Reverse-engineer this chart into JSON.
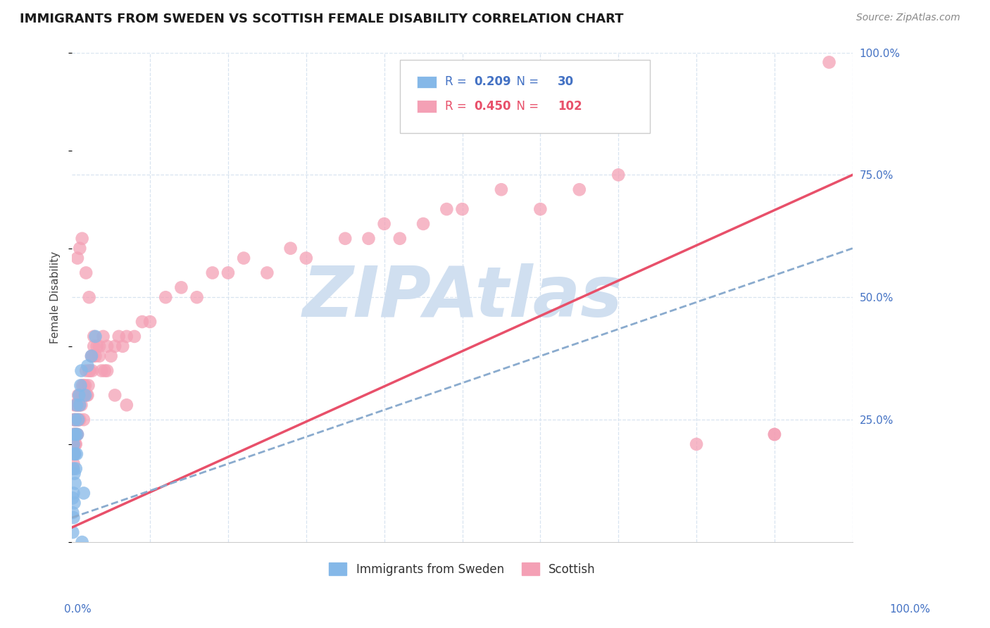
{
  "title": "IMMIGRANTS FROM SWEDEN VS SCOTTISH FEMALE DISABILITY CORRELATION CHART",
  "source": "Source: ZipAtlas.com",
  "ylabel": "Female Disability",
  "legend_blue_r": "0.209",
  "legend_blue_n": "30",
  "legend_pink_r": "0.450",
  "legend_pink_n": "102",
  "blue_color": "#85B8E8",
  "pink_color": "#F4A0B5",
  "blue_line_color": "#8AABCE",
  "pink_line_color": "#E8506A",
  "watermark_text": "ZIPAtlas",
  "watermark_color": "#D0DFF0",
  "background_color": "#FFFFFF",
  "grid_color": "#D8E4F0",
  "title_color": "#1A1A1A",
  "axis_label_color": "#4472C4",
  "pink_line_slope": 0.72,
  "pink_line_intercept": 0.03,
  "blue_line_slope": 0.55,
  "blue_line_intercept": 0.05,
  "blue_x": [
    0.001,
    0.001,
    0.001,
    0.002,
    0.002,
    0.002,
    0.002,
    0.003,
    0.003,
    0.003,
    0.003,
    0.004,
    0.004,
    0.004,
    0.005,
    0.005,
    0.006,
    0.006,
    0.007,
    0.008,
    0.009,
    0.01,
    0.011,
    0.012,
    0.013,
    0.015,
    0.017,
    0.02,
    0.025,
    0.03
  ],
  "blue_y": [
    0.02,
    0.06,
    0.09,
    0.05,
    0.1,
    0.15,
    0.2,
    0.08,
    0.14,
    0.18,
    0.22,
    0.12,
    0.18,
    0.25,
    0.15,
    0.22,
    0.18,
    0.28,
    0.22,
    0.25,
    0.3,
    0.28,
    0.32,
    0.35,
    0.0,
    0.1,
    0.3,
    0.36,
    0.38,
    0.42
  ],
  "pink_x": [
    0.001,
    0.001,
    0.001,
    0.001,
    0.002,
    0.002,
    0.002,
    0.002,
    0.002,
    0.003,
    0.003,
    0.003,
    0.003,
    0.003,
    0.004,
    0.004,
    0.004,
    0.005,
    0.005,
    0.005,
    0.005,
    0.006,
    0.006,
    0.006,
    0.007,
    0.007,
    0.007,
    0.008,
    0.008,
    0.008,
    0.009,
    0.009,
    0.01,
    0.01,
    0.01,
    0.011,
    0.012,
    0.013,
    0.014,
    0.015,
    0.015,
    0.016,
    0.017,
    0.018,
    0.019,
    0.02,
    0.021,
    0.022,
    0.023,
    0.025,
    0.026,
    0.027,
    0.028,
    0.03,
    0.032,
    0.035,
    0.038,
    0.04,
    0.042,
    0.045,
    0.05,
    0.055,
    0.06,
    0.065,
    0.07,
    0.08,
    0.09,
    0.1,
    0.12,
    0.14,
    0.16,
    0.18,
    0.2,
    0.22,
    0.25,
    0.28,
    0.3,
    0.35,
    0.38,
    0.4,
    0.42,
    0.45,
    0.48,
    0.5,
    0.55,
    0.6,
    0.65,
    0.7,
    0.8,
    0.9,
    0.007,
    0.01,
    0.013,
    0.018,
    0.022,
    0.028,
    0.035,
    0.045,
    0.055,
    0.07,
    0.9,
    0.97
  ],
  "pink_y": [
    0.15,
    0.18,
    0.2,
    0.22,
    0.16,
    0.18,
    0.2,
    0.22,
    0.25,
    0.18,
    0.2,
    0.22,
    0.25,
    0.28,
    0.2,
    0.22,
    0.25,
    0.2,
    0.22,
    0.25,
    0.28,
    0.22,
    0.25,
    0.28,
    0.22,
    0.25,
    0.28,
    0.25,
    0.28,
    0.3,
    0.25,
    0.28,
    0.25,
    0.28,
    0.3,
    0.3,
    0.28,
    0.32,
    0.3,
    0.25,
    0.32,
    0.3,
    0.32,
    0.35,
    0.3,
    0.3,
    0.32,
    0.35,
    0.35,
    0.38,
    0.35,
    0.38,
    0.4,
    0.38,
    0.4,
    0.38,
    0.35,
    0.42,
    0.35,
    0.4,
    0.38,
    0.4,
    0.42,
    0.4,
    0.42,
    0.42,
    0.45,
    0.45,
    0.5,
    0.52,
    0.5,
    0.55,
    0.55,
    0.58,
    0.55,
    0.6,
    0.58,
    0.62,
    0.62,
    0.65,
    0.62,
    0.65,
    0.68,
    0.68,
    0.72,
    0.68,
    0.72,
    0.75,
    0.2,
    0.22,
    0.58,
    0.6,
    0.62,
    0.55,
    0.5,
    0.42,
    0.4,
    0.35,
    0.3,
    0.28,
    0.22,
    0.98
  ]
}
